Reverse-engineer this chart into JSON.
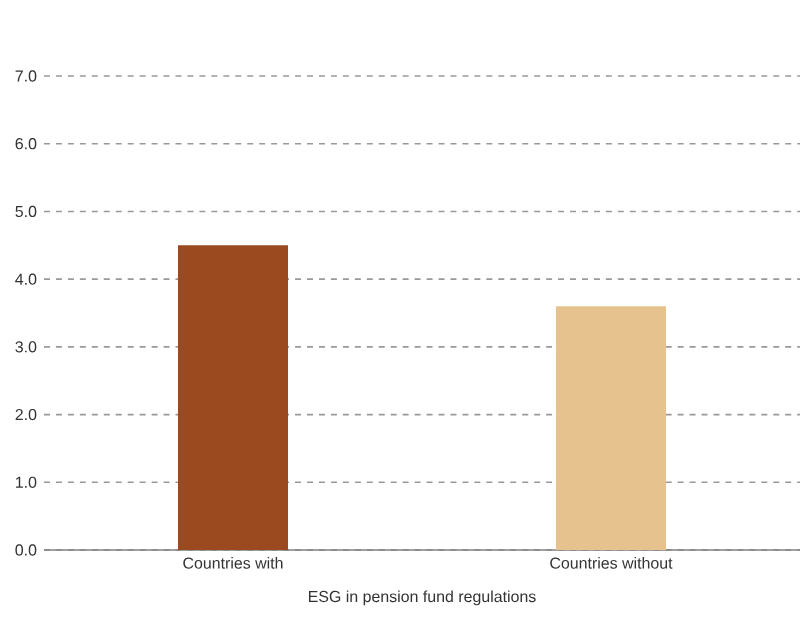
{
  "chart_data": {
    "type": "bar",
    "xlabel": "ESG in pension fund regulations",
    "categories": [
      "Countries with",
      "Countries without"
    ],
    "values": [
      4.5,
      3.6
    ],
    "colors": [
      "#9a4a1e",
      "#e6c38e"
    ],
    "ylim": [
      0,
      7
    ],
    "yticks": [
      {
        "value": 0,
        "label": "0.0"
      },
      {
        "value": 1,
        "label": "1.0"
      },
      {
        "value": 2,
        "label": "2.0"
      },
      {
        "value": 3,
        "label": "3.0"
      },
      {
        "value": 4,
        "label": "4.0"
      },
      {
        "value": 5,
        "label": "5.0"
      },
      {
        "value": 6,
        "label": "6.0"
      },
      {
        "value": 7,
        "label": "7.0"
      }
    ],
    "grid": "y"
  }
}
